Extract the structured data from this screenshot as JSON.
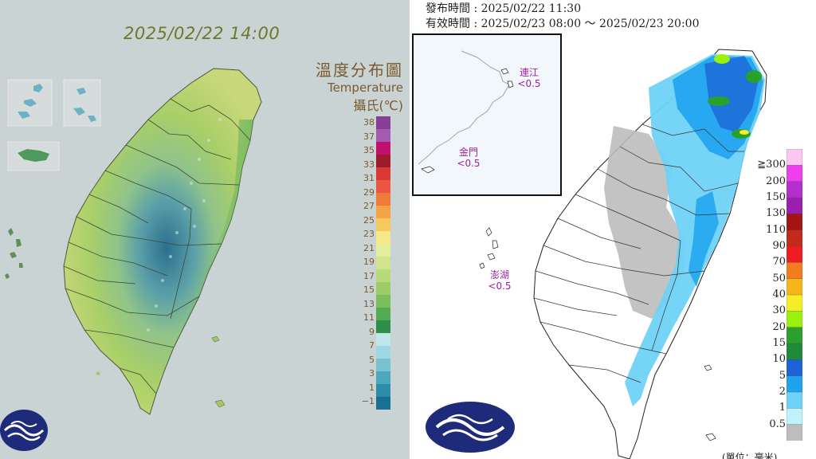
{
  "left_panel": {
    "datetime": "2025/02/22 14:00",
    "title_zh": "溫度分布圖",
    "title_en": "Temperature",
    "unit": "攝氏(℃)",
    "scale_labels": [
      "38",
      "37",
      "35",
      "33",
      "31",
      "29",
      "27",
      "25",
      "23",
      "21",
      "19",
      "17",
      "15",
      "13",
      "11",
      "9",
      "7",
      "5",
      "3",
      "1",
      "−1"
    ],
    "scale_colors": [
      "#8a3d94",
      "#a45cb0",
      "#c0126c",
      "#9c1c2c",
      "#d93a36",
      "#ec5540",
      "#f07a3a",
      "#f4a446",
      "#f7c95a",
      "#f4e88a",
      "#e3ee9a",
      "#cfe48c",
      "#b8da7a",
      "#9ccd68",
      "#7cbd5c",
      "#55aa55",
      "#2e8f4c",
      "#c0e6ec",
      "#9fd7e2",
      "#78c2d2",
      "#4ea8bd",
      "#2d8ca8",
      "#1a6f94"
    ],
    "icon": "cwa-logo"
  },
  "right_panel": {
    "issue_label": "發布時間 : 2025/02/22 11:30",
    "valid_label": "有效時間 : 2025/02/23 08:00 ～ 2025/02/23 20:00",
    "inset_labels": {
      "lienchiang_name": "連江",
      "lienchiang_value": "<0.5",
      "kinmen_name": "金門",
      "kinmen_value": "<0.5"
    },
    "penghu_name": "澎湖",
    "penghu_value": "<0.5",
    "scale_labels": [
      "≧300",
      "200",
      "150",
      "130",
      "110",
      "90",
      "70",
      "50",
      "40",
      "30",
      "20",
      "15",
      "10",
      "5",
      "2",
      "1",
      "0.5"
    ],
    "scale_colors": [
      "#fbc6f0",
      "#ee3fee",
      "#b52fcf",
      "#9a1fb0",
      "#a31414",
      "#c22a1a",
      "#ee1d23",
      "#f27d20",
      "#f7b51c",
      "#f3ee26",
      "#9cf00f",
      "#2ca02c",
      "#1f8b3a",
      "#1e63d6",
      "#1fa3ee",
      "#6fd3f7",
      "#bff3fb",
      "#bdbdbd"
    ],
    "unit_note": "(單位：毫米)",
    "icon": "cwa-logo"
  }
}
